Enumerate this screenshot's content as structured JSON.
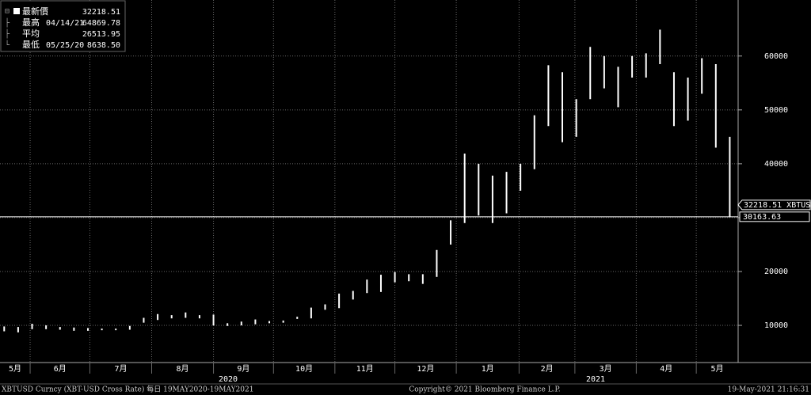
{
  "chart_data": {
    "type": "range-bar",
    "series": [
      {
        "name": "XBTUSD",
        "color": "#ffffff",
        "high": [
          9800,
          9700,
          10300,
          10000,
          9700,
          9600,
          9500,
          9400,
          9400,
          9900,
          11400,
          12100,
          11900,
          12400,
          11900,
          12000,
          10400,
          10700,
          11100,
          10800,
          10900,
          11600,
          13300,
          13900,
          15900,
          16400,
          18500,
          19400,
          19900,
          19500,
          19500,
          24000,
          29500,
          41900,
          40000,
          37800,
          38500,
          40000,
          49000,
          58300,
          57000,
          52000,
          61700,
          60000,
          58000,
          60000,
          60500,
          64900,
          57000,
          56000,
          59600,
          58500,
          45000
        ],
        "low": [
          8900,
          8700,
          9300,
          9300,
          9200,
          9000,
          9000,
          9100,
          9100,
          9200,
          10500,
          11000,
          11300,
          11400,
          11300,
          10000,
          9900,
          10000,
          10200,
          10400,
          10500,
          11200,
          11300,
          12900,
          13200,
          14800,
          16000,
          16200,
          18000,
          18200,
          17700,
          19000,
          25000,
          29000,
          30400,
          29000,
          30800,
          35000,
          39000,
          47000,
          44000,
          45000,
          52000,
          54000,
          50500,
          56000,
          56000,
          58500,
          47000,
          48000,
          53000,
          43000,
          30100
        ]
      }
    ],
    "xlim": [
      -0.3,
      52.6
    ],
    "xticks": [
      {
        "value": -2.57,
        "label": "5月"
      },
      {
        "value": 1.86,
        "label": "6月"
      },
      {
        "value": 6.14,
        "label": "7月"
      },
      {
        "value": 10.57,
        "label": "8月"
      },
      {
        "value": 15,
        "label": "9月"
      },
      {
        "value": 19.3,
        "label": "10月"
      },
      {
        "value": 23.7,
        "label": "11月"
      },
      {
        "value": 28,
        "label": "12月"
      },
      {
        "value": 32.4,
        "label": "1月"
      },
      {
        "value": 36.9,
        "label": "2月"
      },
      {
        "value": 40.9,
        "label": "3月"
      },
      {
        "value": 45.3,
        "label": "4月"
      },
      {
        "value": 49.6,
        "label": "5月"
      }
    ],
    "year_labels": [
      "2020",
      "2021"
    ],
    "ylim": [
      3100,
      70400
    ],
    "yticks": [
      10000,
      20000,
      30000,
      40000,
      50000,
      60000
    ],
    "grid": true,
    "reference_line": {
      "value": 30163.63,
      "label": "30163.63"
    },
    "last_price_label": {
      "value": 32218.51,
      "label": "32218.51 XBTUSD"
    },
    "stats": [
      {
        "label": "最新價",
        "value": 32218.51
      },
      {
        "label": "最高",
        "date": "04/14/21",
        "value": 64869.78
      },
      {
        "label": "平均",
        "value": 26513.95
      },
      {
        "label": "最低",
        "date": "05/25/20",
        "value": {
          "value": 8638.5,
          "label": "8638.50"
        }
      }
    ],
    "footer_left": "XBTUSD Curncy (XBT-USD Cross Rate)  每日 19MAY2020-19MAY2021",
    "footer_center": "Copyright© 2021 Bloomberg Finance L.P.",
    "footer_right": "19-May-2021 21:16:31"
  }
}
